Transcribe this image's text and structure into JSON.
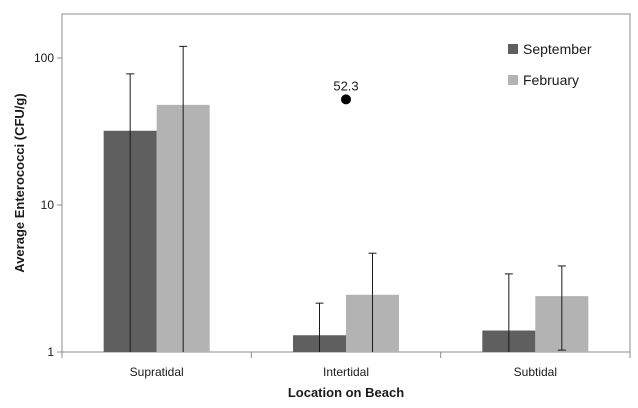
{
  "chart_data": {
    "type": "bar",
    "title": "",
    "xlabel": "Location on Beach",
    "ylabel": "Average Enterococci (CFU/g)",
    "yscale": "log",
    "ylim": [
      1,
      200
    ],
    "yticks": [
      1,
      10,
      100
    ],
    "ytick_labels": [
      "1",
      "10",
      "100"
    ],
    "categories": [
      "Supratidal",
      "Intertidal",
      "Subtidal"
    ],
    "series": [
      {
        "name": "September",
        "color": "#5f5f5f",
        "values": [
          32,
          1.3,
          1.4
        ],
        "error_upper": [
          78,
          2.15,
          3.4
        ],
        "error_lower": [
          1,
          1,
          1
        ]
      },
      {
        "name": "February",
        "color": "#b3b3b3",
        "values": [
          48,
          2.45,
          2.4
        ],
        "error_upper": [
          120,
          4.7,
          3.85
        ],
        "error_lower": [
          1,
          1,
          1.03
        ]
      }
    ],
    "annotations": [
      {
        "category": "Intertidal",
        "value": 52.3,
        "label": "52.3"
      }
    ],
    "legend": {
      "position": "top-right"
    },
    "grid": false
  }
}
